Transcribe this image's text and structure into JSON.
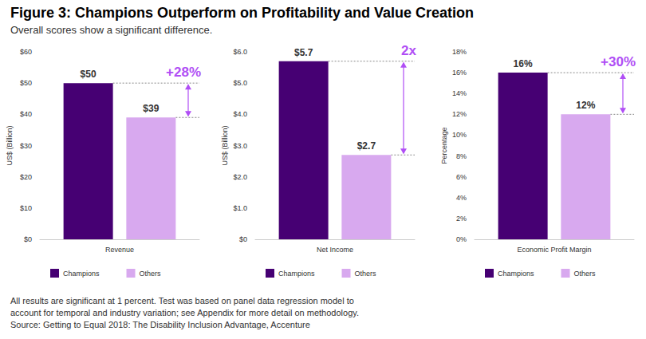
{
  "title": "Figure 3: Champions Outperform on Profitability and Value Creation",
  "subtitle": "Overall scores show a significant difference.",
  "footnote": [
    "All results are significant at 1 percent. Test was based on panel data regression model to",
    "account for temporal and industry variation; see Appendix for more detail on methodology.",
    "Source: Getting to Equal 2018: The Disability Inclusion Advantage, Accenture"
  ],
  "chart_data": [
    {
      "type": "bar",
      "categories": [
        "Revenue"
      ],
      "ylabel": "US$ (Billion)",
      "ylim": [
        0,
        60
      ],
      "yticks": [
        {
          "value": 0,
          "label": "$0"
        },
        {
          "value": 10,
          "label": "$10"
        },
        {
          "value": 20,
          "label": "$20"
        },
        {
          "value": 30,
          "label": "$30"
        },
        {
          "value": 40,
          "label": "$40"
        },
        {
          "value": 50,
          "label": "$50"
        },
        {
          "value": 60,
          "label": "$60"
        }
      ],
      "grid": false,
      "legend": "bottom",
      "data_labels": true,
      "annotation": "+28%",
      "series": [
        {
          "name": "Champions",
          "color": "#460073",
          "values": [
            50
          ],
          "value_labels": [
            "$50"
          ]
        },
        {
          "name": "Others",
          "color": "#d8a9ef",
          "values": [
            39
          ],
          "value_labels": [
            "$39"
          ]
        }
      ]
    },
    {
      "type": "bar",
      "categories": [
        "Net Income"
      ],
      "ylabel": "US$ (Billion)",
      "ylim": [
        0,
        6
      ],
      "yticks": [
        {
          "value": 0,
          "label": "$0"
        },
        {
          "value": 1,
          "label": "$1.0"
        },
        {
          "value": 2,
          "label": "$2.0"
        },
        {
          "value": 3,
          "label": "$3.0"
        },
        {
          "value": 4,
          "label": "$4.0"
        },
        {
          "value": 5,
          "label": "$5.0"
        },
        {
          "value": 6,
          "label": "$6.0"
        }
      ],
      "grid": false,
      "legend": "bottom",
      "data_labels": true,
      "annotation": "2x",
      "series": [
        {
          "name": "Champions",
          "color": "#460073",
          "values": [
            5.7
          ],
          "value_labels": [
            "$5.7"
          ]
        },
        {
          "name": "Others",
          "color": "#d8a9ef",
          "values": [
            2.7
          ],
          "value_labels": [
            "$2.7"
          ]
        }
      ]
    },
    {
      "type": "bar",
      "categories": [
        "Economic Profit Margin"
      ],
      "ylabel": "Percentage",
      "ylim": [
        0,
        18
      ],
      "yticks": [
        {
          "value": 0,
          "label": "0%"
        },
        {
          "value": 2,
          "label": "2%"
        },
        {
          "value": 4,
          "label": "4%"
        },
        {
          "value": 6,
          "label": "6%"
        },
        {
          "value": 8,
          "label": "8%"
        },
        {
          "value": 10,
          "label": "10%"
        },
        {
          "value": 12,
          "label": "12%"
        },
        {
          "value": 14,
          "label": "14%"
        },
        {
          "value": 16,
          "label": "16%"
        },
        {
          "value": 18,
          "label": "18%"
        }
      ],
      "grid": false,
      "legend": "bottom",
      "data_labels": true,
      "annotation": "+30%",
      "series": [
        {
          "name": "Champions",
          "color": "#460073",
          "values": [
            16
          ],
          "value_labels": [
            "16%"
          ]
        },
        {
          "name": "Others",
          "color": "#d8a9ef",
          "values": [
            12
          ],
          "value_labels": [
            "12%"
          ]
        }
      ]
    }
  ]
}
